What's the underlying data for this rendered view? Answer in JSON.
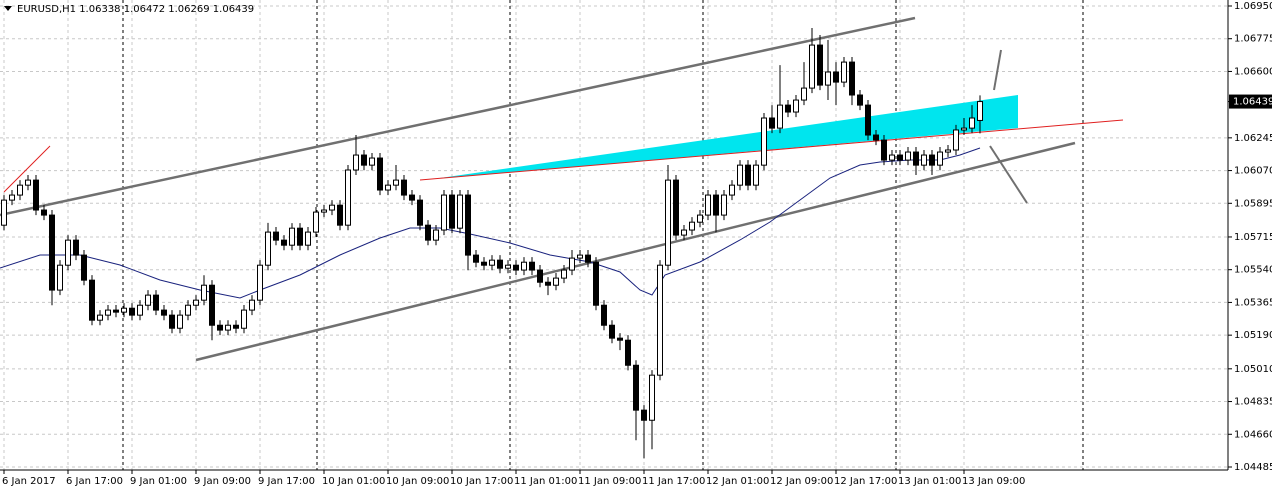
{
  "chart_data": {
    "type": "candlestick",
    "title": "EURUSD,H1  1.06338 1.06472 1.06269 1.06439",
    "categories": [
      "6 Jan 2017",
      null,
      null,
      null,
      null,
      null,
      null,
      null,
      "6 Jan 17:00",
      null,
      null,
      null,
      null,
      null,
      null,
      null,
      "9 Jan 01:00",
      null,
      null,
      null,
      null,
      null,
      null,
      null,
      "9 Jan 09:00",
      null,
      null,
      null,
      null,
      null,
      null,
      null,
      "9 Jan 17:00",
      null,
      null,
      null,
      null,
      null,
      null,
      null,
      "10 Jan 01:00",
      null,
      null,
      null,
      null,
      null,
      null,
      null,
      "10 Jan 09:00",
      null,
      null,
      null,
      null,
      null,
      null,
      null,
      "10 Jan 17:00",
      null,
      null,
      null,
      null,
      null,
      null,
      null,
      "11 Jan 01:00",
      null,
      null,
      null,
      null,
      null,
      null,
      null,
      "11 Jan 09:00",
      null,
      null,
      null,
      null,
      null,
      null,
      null,
      "11 Jan 17:00",
      null,
      null,
      null,
      null,
      null,
      null,
      null,
      "12 Jan 01:00",
      null,
      null,
      null,
      null,
      null,
      null,
      null,
      "12 Jan 09:00",
      null,
      null,
      null,
      null,
      null,
      null,
      null,
      "12 Jan 17:00",
      null,
      null,
      null,
      null,
      null,
      null,
      null,
      "13 Jan 01:00",
      null,
      null,
      null,
      null,
      null,
      null,
      null,
      "13 Jan 09:00",
      null,
      null
    ],
    "open": [
      1.05778,
      1.05912,
      1.05939,
      1.05992,
      1.06019,
      1.05859,
      1.05832,
      1.05431,
      1.05564,
      1.05698,
      1.05618,
      1.05484,
      1.0527,
      1.05297,
      1.05324,
      1.05313,
      1.05334,
      1.05297,
      1.0535,
      1.05404,
      1.05324,
      1.05297,
      1.05227,
      1.05297,
      1.0535,
      1.05377,
      1.05457,
      1.05243,
      1.05217,
      1.05243,
      1.05227,
      1.05324,
      1.05377,
      1.05564,
      1.05741,
      1.05698,
      1.05671,
      1.05762,
      1.05671,
      1.05741,
      1.05848,
      1.05859,
      1.05885,
      1.05778,
      1.06073,
      1.06153,
      1.06099,
      1.06137,
      1.05966,
      1.05992,
      1.06019,
      1.05939,
      1.05912,
      1.05778,
      1.05698,
      1.05752,
      1.05939,
      1.05762,
      1.05939,
      1.05618,
      1.0558,
      1.05564,
      1.05591,
      1.05548,
      1.05564,
      1.05538,
      1.0558,
      1.05538,
      1.05473,
      1.05457,
      1.05495,
      1.05538,
      1.05602,
      1.05618,
      1.0558,
      1.0535,
      1.05243,
      1.05174,
      1.05163,
      1.05029,
      1.04789,
      1.04735,
      1.04976,
      1.05564,
      1.06019,
      1.05725,
      1.05752,
      1.05794,
      1.05832,
      1.05939,
      1.05832,
      1.05939,
      1.05992,
      1.06099,
      1.05992,
      1.06099,
      1.06351,
      1.06297,
      1.0642,
      1.06383,
      1.06447,
      1.06511,
      1.06741,
      1.06527,
      1.06597,
      1.06543,
      1.0665,
      1.06474,
      1.0642,
      1.0626,
      1.06233,
      1.06126,
      1.06153,
      1.06126,
      1.06169,
      1.06099,
      1.06153,
      1.06099,
      1.06169,
      1.0618,
      1.06287,
      1.06297,
      1.06338
    ],
    "high": [
      1.05939,
      1.05966,
      1.06019,
      1.06046,
      1.06046,
      1.05886,
      1.05859,
      1.05591,
      1.05725,
      1.05725,
      1.05645,
      1.05511,
      1.05324,
      1.05351,
      1.05351,
      1.05361,
      1.05361,
      1.05377,
      1.05431,
      1.05431,
      1.05351,
      1.05324,
      1.05324,
      1.05377,
      1.05404,
      1.0551,
      1.05484,
      1.0527,
      1.0527,
      1.0527,
      1.05351,
      1.05404,
      1.05591,
      1.0579,
      1.05768,
      1.05725,
      1.05789,
      1.05789,
      1.05768,
      1.05875,
      1.05886,
      1.05912,
      1.05912,
      1.061,
      1.0626,
      1.0618,
      1.06164,
      1.06164,
      1.06019,
      1.061,
      1.06046,
      1.05966,
      1.05939,
      1.05805,
      1.05779,
      1.05966,
      1.05966,
      1.05966,
      1.05966,
      1.05645,
      1.05607,
      1.05618,
      1.05618,
      1.05591,
      1.05591,
      1.05607,
      1.05607,
      1.05565,
      1.055,
      1.05522,
      1.05565,
      1.05645,
      1.05645,
      1.05645,
      1.05607,
      1.05377,
      1.0527,
      1.05201,
      1.0519,
      1.05056,
      1.04816,
      1.05003,
      1.05591,
      1.061,
      1.06046,
      1.05779,
      1.05821,
      1.05859,
      1.05966,
      1.05966,
      1.05966,
      1.06019,
      1.06126,
      1.06126,
      1.06126,
      1.06378,
      1.0642,
      1.06634,
      1.06447,
      1.06474,
      1.0665,
      1.06832,
      1.06795,
      1.06768,
      1.0665,
      1.06677,
      1.06677,
      1.06501,
      1.06447,
      1.06287,
      1.0626,
      1.0618,
      1.0618,
      1.06196,
      1.06196,
      1.0618,
      1.0618,
      1.06196,
      1.06207,
      1.06314,
      1.06351,
      1.0642,
      1.06472
    ],
    "low": [
      1.05751,
      1.05885,
      1.05912,
      1.05965,
      1.05832,
      1.05805,
      1.0535,
      1.05404,
      1.05537,
      1.05591,
      1.05457,
      1.05243,
      1.05243,
      1.0527,
      1.05286,
      1.05286,
      1.0527,
      1.0527,
      1.05323,
      1.05297,
      1.0527,
      1.052,
      1.052,
      1.0527,
      1.05323,
      1.0535,
      1.05163,
      1.0519,
      1.0519,
      1.052,
      1.052,
      1.05297,
      1.0535,
      1.05537,
      1.05671,
      1.05644,
      1.05644,
      1.05644,
      1.05644,
      1.05714,
      1.05821,
      1.05832,
      1.05751,
      1.05751,
      1.06046,
      1.06072,
      1.06072,
      1.05939,
      1.05939,
      1.05965,
      1.05912,
      1.05885,
      1.05751,
      1.05671,
      1.05671,
      1.05725,
      1.05735,
      1.05735,
      1.05537,
      1.05553,
      1.05537,
      1.05537,
      1.05521,
      1.05521,
      1.05511,
      1.05511,
      1.05511,
      1.05446,
      1.05404,
      1.0543,
      1.05468,
      1.05511,
      1.05575,
      1.05553,
      1.05323,
      1.05216,
      1.05147,
      1.0511,
      1.05002,
      1.04628,
      1.04532,
      1.0458,
      1.04949,
      1.05537,
      1.05698,
      1.05698,
      1.05725,
      1.05767,
      1.05805,
      1.0574,
      1.05805,
      1.05912,
      1.05965,
      1.05965,
      1.05965,
      1.06072,
      1.0627,
      1.0627,
      1.06356,
      1.06356,
      1.0642,
      1.06484,
      1.065,
      1.06447,
      1.0642,
      1.06516,
      1.0642,
      1.06393,
      1.06233,
      1.06206,
      1.06099,
      1.06099,
      1.06099,
      1.06099,
      1.06046,
      1.06072,
      1.06046,
      1.06072,
      1.06142,
      1.06153,
      1.0626,
      1.0627,
      1.06269
    ],
    "close": [
      1.05912,
      1.05939,
      1.05992,
      1.06019,
      1.05859,
      1.05832,
      1.05431,
      1.05564,
      1.05698,
      1.05618,
      1.05484,
      1.0527,
      1.05297,
      1.05324,
      1.05313,
      1.05334,
      1.05297,
      1.0535,
      1.05404,
      1.05324,
      1.05297,
      1.05227,
      1.05297,
      1.0535,
      1.05377,
      1.05457,
      1.05243,
      1.05217,
      1.05243,
      1.05227,
      1.05324,
      1.05377,
      1.05564,
      1.05741,
      1.05698,
      1.05671,
      1.05762,
      1.05671,
      1.05741,
      1.05848,
      1.05859,
      1.05885,
      1.05778,
      1.06073,
      1.06153,
      1.06099,
      1.06137,
      1.05966,
      1.05992,
      1.06019,
      1.05939,
      1.05912,
      1.05778,
      1.05698,
      1.05752,
      1.05939,
      1.05762,
      1.05939,
      1.05618,
      1.0558,
      1.05564,
      1.05591,
      1.05548,
      1.05564,
      1.05538,
      1.0558,
      1.05538,
      1.05473,
      1.05457,
      1.05495,
      1.05538,
      1.05602,
      1.05618,
      1.0558,
      1.0535,
      1.05243,
      1.05174,
      1.05163,
      1.05029,
      1.04789,
      1.04735,
      1.04976,
      1.05564,
      1.06019,
      1.05725,
      1.05752,
      1.05794,
      1.05832,
      1.05939,
      1.05832,
      1.05939,
      1.05992,
      1.06099,
      1.05992,
      1.06099,
      1.06351,
      1.06297,
      1.0642,
      1.06383,
      1.06447,
      1.06511,
      1.06741,
      1.06527,
      1.06597,
      1.06543,
      1.0665,
      1.06474,
      1.0642,
      1.0626,
      1.06233,
      1.06126,
      1.06153,
      1.06126,
      1.06169,
      1.06099,
      1.06153,
      1.06099,
      1.06169,
      1.0618,
      1.06287,
      1.06297,
      1.06351,
      1.06439
    ],
    "up_color": "#ffffff",
    "down_color": "#000000",
    "ylim": [
      1.04469,
      1.06982
    ],
    "yticks": [
      {
        "value": 1.0695,
        "label": "1.06950"
      },
      1.06775,
      {
        "value": 1.066,
        "label": "1.06600"
      },
      1.06245,
      {
        "value": 1.0607,
        "label": "1.06070"
      },
      1.05895,
      1.05715,
      {
        "value": 1.0554,
        "label": "1.05540"
      },
      1.05365,
      {
        "value": 1.0519,
        "label": "1.05190"
      },
      {
        "value": 1.0501,
        "label": "1.05010"
      },
      1.04835,
      {
        "value": 1.0466,
        "label": "1.04660"
      },
      1.04485
    ],
    "grid": true
  }
}
